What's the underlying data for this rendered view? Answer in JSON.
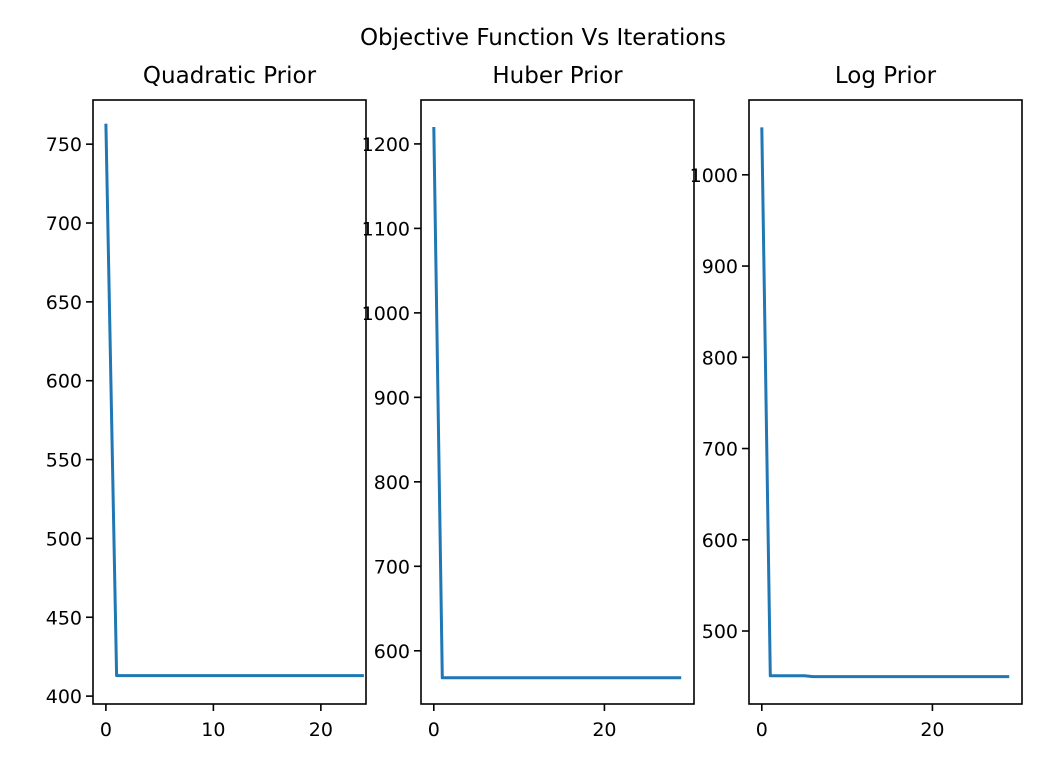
{
  "figure": {
    "title": "Objective Function Vs Iterations"
  },
  "colors": {
    "series": "#1f77b4",
    "axes": "#000000",
    "background": "#ffffff"
  },
  "chart_data": [
    {
      "type": "line",
      "title": "Quadratic Prior",
      "xlabel": "",
      "ylabel": "",
      "xlim": [
        -1.2,
        24.2
      ],
      "ylim": [
        395,
        778
      ],
      "xticks": [
        0,
        10,
        20
      ],
      "yticks": [
        400,
        450,
        500,
        550,
        600,
        650,
        700,
        750
      ],
      "grid": false,
      "series": [
        {
          "x": [
            0,
            1,
            2,
            3,
            4,
            5,
            6,
            7,
            8,
            9,
            10,
            11,
            12,
            13,
            14,
            15,
            16,
            17,
            18,
            19,
            20,
            21,
            22,
            23,
            24
          ],
          "y": [
            763,
            413,
            413,
            413,
            413,
            413,
            413,
            413,
            413,
            413,
            413,
            413,
            413,
            413,
            413,
            413,
            413,
            413,
            413,
            413,
            413,
            413,
            413,
            413,
            413
          ]
        }
      ]
    },
    {
      "type": "line",
      "title": "Huber Prior",
      "xlabel": "",
      "ylabel": "",
      "xlim": [
        -1.5,
        30.5
      ],
      "ylim": [
        537,
        1252
      ],
      "xticks": [
        0,
        20
      ],
      "yticks": [
        600,
        700,
        800,
        900,
        1000,
        1100,
        1200
      ],
      "grid": false,
      "series": [
        {
          "x": [
            0,
            1,
            2,
            3,
            4,
            5,
            6,
            7,
            8,
            9,
            10,
            11,
            12,
            13,
            14,
            15,
            16,
            17,
            18,
            19,
            20,
            21,
            22,
            23,
            24,
            25,
            26,
            27,
            28,
            29
          ],
          "y": [
            1220,
            568,
            568,
            568,
            568,
            568,
            568,
            568,
            568,
            568,
            568,
            568,
            568,
            568,
            568,
            568,
            568,
            568,
            568,
            568,
            568,
            568,
            568,
            568,
            568,
            568,
            568,
            568,
            568,
            568
          ]
        }
      ]
    },
    {
      "type": "line",
      "title": "Log Prior",
      "xlabel": "",
      "ylabel": "",
      "xlim": [
        -1.5,
        30.5
      ],
      "ylim": [
        420,
        1082
      ],
      "xticks": [
        0,
        20
      ],
      "yticks": [
        500,
        600,
        700,
        800,
        900,
        1000
      ],
      "grid": false,
      "series": [
        {
          "x": [
            0,
            1,
            2,
            3,
            4,
            5,
            6,
            7,
            8,
            9,
            10,
            11,
            12,
            13,
            14,
            15,
            16,
            17,
            18,
            19,
            20,
            21,
            22,
            23,
            24,
            25,
            26,
            27,
            28,
            29
          ],
          "y": [
            1052,
            451,
            451,
            451,
            451,
            451,
            450,
            450,
            450,
            450,
            450,
            450,
            450,
            450,
            450,
            450,
            450,
            450,
            450,
            450,
            450,
            450,
            450,
            450,
            450,
            450,
            450,
            450,
            450,
            450
          ]
        }
      ]
    }
  ]
}
